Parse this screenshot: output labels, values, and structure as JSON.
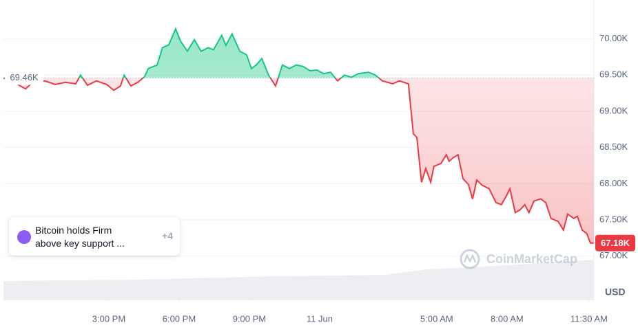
{
  "chart_data": {
    "type": "line",
    "x": [
      10.5,
      10.94,
      11.44,
      11.68,
      12.26,
      12.71,
      13.15,
      13.59,
      13.79,
      14.09,
      14.47,
      14.91,
      15.21,
      15.5,
      15.65,
      15.94,
      16.24,
      16.53,
      16.68,
      17.06,
      17.29,
      17.56,
      17.85,
      18.06,
      18.35,
      18.65,
      18.94,
      19.24,
      19.47,
      19.82,
      20.0,
      20.26,
      20.59,
      20.88,
      21.09,
      21.29,
      21.53,
      21.82,
      22.12,
      22.41,
      22.71,
      23.0,
      23.29,
      23.59,
      23.88,
      24.18,
      24.47,
      24.76,
      25.06,
      25.35,
      25.65,
      26.09,
      26.38,
      26.68,
      27.12,
      27.41,
      27.79,
      28.0,
      28.15,
      28.35,
      28.53,
      28.74,
      28.88,
      29.18,
      29.41,
      29.53,
      29.71,
      29.91,
      30.12,
      30.35,
      30.53,
      30.71,
      30.94,
      31.24,
      31.53,
      31.76,
      31.97,
      32.12,
      32.35,
      32.56,
      32.76,
      32.94,
      33.15,
      33.44,
      33.65,
      33.88,
      34.18,
      34.41,
      34.59,
      34.85,
      35.0,
      35.21,
      35.41,
      35.56,
      35.71
    ],
    "values": [
      69460,
      69400,
      69310,
      69380,
      69420,
      69370,
      69400,
      69380,
      69500,
      69360,
      69420,
      69370,
      69290,
      69350,
      69500,
      69350,
      69400,
      69480,
      69590,
      69640,
      69880,
      69920,
      70140,
      69970,
      69830,
      69990,
      69830,
      69880,
      69850,
      70050,
      69910,
      70070,
      69830,
      69780,
      69590,
      69640,
      69730,
      69500,
      69350,
      69640,
      69590,
      69640,
      69620,
      69560,
      69570,
      69520,
      69540,
      69420,
      69500,
      69470,
      69520,
      69540,
      69500,
      69420,
      69380,
      69420,
      69380,
      68690,
      68640,
      68020,
      68210,
      68020,
      68240,
      68280,
      68400,
      68310,
      68360,
      68400,
      68070,
      67990,
      67790,
      68050,
      67980,
      67930,
      67740,
      67710,
      67830,
      67930,
      67600,
      67640,
      67710,
      67600,
      67760,
      67790,
      67740,
      67520,
      67480,
      67360,
      67580,
      67520,
      67550,
      67360,
      67310,
      67180,
      67180
    ],
    "up_color": "#16c784",
    "down_color": "#ea3943",
    "xlim": [
      10.5,
      35.71
    ],
    "xticks": [
      {
        "value": 15,
        "label": "3:00 PM"
      },
      {
        "value": 18,
        "label": "6:00 PM"
      },
      {
        "value": 21,
        "label": "9:00 PM"
      },
      {
        "value": 24,
        "label": "11 Jun"
      },
      {
        "value": 29,
        "label": "5:00 AM"
      },
      {
        "value": 32,
        "label": "8:00 AM"
      },
      {
        "value": 35.5,
        "label": "11:30 AM"
      }
    ],
    "ylim": [
      66390,
      70490
    ],
    "yticks": [
      {
        "value": 67000,
        "label": "67.00K"
      },
      {
        "value": 67500,
        "label": "67.50K"
      },
      {
        "value": 68000,
        "label": "68.00K"
      },
      {
        "value": 68500,
        "label": "68.50K"
      },
      {
        "value": 69000,
        "label": "69.00K"
      },
      {
        "value": 69500,
        "label": "69.50K"
      },
      {
        "value": 70000,
        "label": "70.00K"
      }
    ],
    "grid": true,
    "reference": {
      "value": 69460,
      "label": "69.46K"
    },
    "current_price": {
      "value": 67180,
      "label": "67.18K"
    },
    "y_unit": "USD",
    "watermark": "CoinMarketCap"
  },
  "news": {
    "text": "Bitcoin holds Firm above key support ...",
    "count": "+4"
  }
}
